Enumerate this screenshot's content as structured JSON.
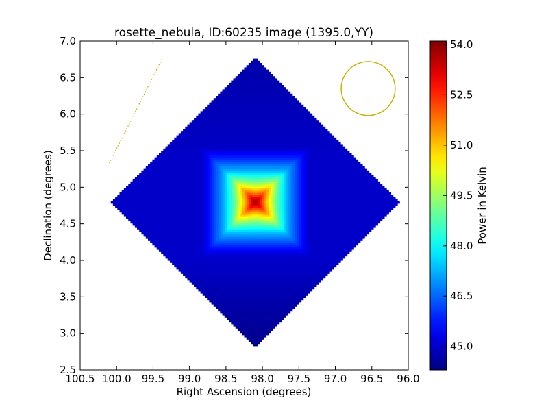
{
  "chart_data": {
    "type": "heatmap",
    "title": "rosette_nebula, ID:60235 image (1395.0,YY)",
    "xlabel": "Right Ascension (degrees)",
    "ylabel": "Declination (degrees)",
    "xlim": [
      100.5,
      96.0
    ],
    "ylim": [
      2.5,
      7.0
    ],
    "x_ticks": [
      "100.5",
      "100.0",
      "99.5",
      "99.0",
      "98.5",
      "98.0",
      "97.5",
      "97.0",
      "96.5",
      "96.0"
    ],
    "y_ticks": [
      "2.5",
      "3.0",
      "3.5",
      "4.0",
      "4.5",
      "5.0",
      "5.5",
      "6.0",
      "6.5",
      "7.0"
    ],
    "x_tick_values": [
      100.5,
      100.0,
      99.5,
      99.0,
      98.5,
      98.0,
      97.5,
      97.0,
      96.5,
      96.0
    ],
    "y_tick_values": [
      2.5,
      3.0,
      3.5,
      4.0,
      4.5,
      5.0,
      5.5,
      6.0,
      6.5,
      7.0
    ],
    "colorbar": {
      "label": "Power in Kelvin",
      "range": [
        44.3,
        54.1
      ],
      "ticks": [
        "45.0",
        "46.5",
        "48.0",
        "49.5",
        "51.0",
        "52.5",
        "54.0"
      ],
      "tick_values": [
        45.0,
        46.5,
        48.0,
        49.5,
        51.0,
        52.5,
        54.0
      ],
      "colormap": "jet"
    },
    "map_region": {
      "shape": "diamond",
      "center": [
        98.1,
        4.8
      ],
      "vertices": [
        [
          98.1,
          6.78
        ],
        [
          96.12,
          4.8
        ],
        [
          98.1,
          2.82
        ],
        [
          100.08,
          4.8
        ]
      ]
    },
    "peak": {
      "ra": 98.1,
      "dec": 4.8,
      "value": 54.0
    },
    "background_value": 45.0,
    "beam_circle": {
      "ra": 96.55,
      "dec": 6.35,
      "radius_deg": 0.37,
      "color": "#c8b400"
    },
    "dotted_line": {
      "from": [
        100.1,
        5.33
      ],
      "to": [
        99.38,
        6.75
      ],
      "color": "#c8b400"
    }
  }
}
